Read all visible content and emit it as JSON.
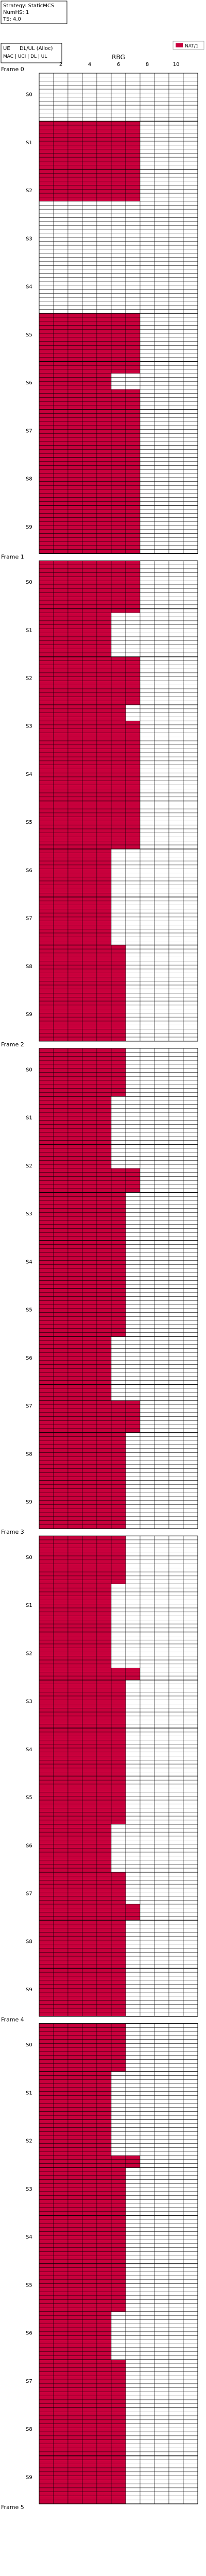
{
  "header": {
    "info_lines": [
      "Strategy: StaticMCS",
      "NumHS: 1",
      "TS: 4.0"
    ],
    "legend_lines": [
      "UE",
      "DL/UL (Alloc)",
      "MAC | UCI | DL | UL"
    ],
    "legend_item": "NAT/1"
  },
  "colors": {
    "allocated": "#c8003c",
    "grid": "#000000",
    "free": "#ffffff",
    "background": "#ffffff"
  },
  "chart_data": {
    "type": "heatmap",
    "xlabel": "RBG",
    "x_ticks": [
      2,
      4,
      6,
      8,
      10
    ],
    "x_range": [
      0,
      11
    ],
    "rows_per_slot": 12,
    "grid": true,
    "legend_position": "top-right",
    "series": [
      {
        "name": "NAT/1",
        "color": "#c8003c"
      }
    ],
    "frames": [
      {
        "label": "Frame 0",
        "slots": [
          {
            "label": "S0",
            "allocated_rbgs": [
              0,
              0,
              0,
              0,
              0,
              0,
              0,
              0,
              0,
              0,
              0,
              0
            ]
          },
          {
            "label": "S1",
            "allocated_rbgs": [
              7,
              7,
              7,
              7,
              7,
              7,
              7,
              7,
              7,
              7,
              7,
              7
            ]
          },
          {
            "label": "S2",
            "allocated_rbgs": [
              7,
              7,
              7,
              7,
              7,
              7,
              7,
              7,
              0,
              0,
              0,
              0
            ]
          },
          {
            "label": "S3",
            "allocated_rbgs": [
              0,
              0,
              0,
              0,
              0,
              0,
              0,
              0,
              0,
              0,
              0,
              0
            ]
          },
          {
            "label": "S4",
            "allocated_rbgs": [
              0,
              0,
              0,
              0,
              0,
              0,
              0,
              0,
              0,
              0,
              0,
              0
            ]
          },
          {
            "label": "S5",
            "allocated_rbgs": [
              7,
              7,
              7,
              7,
              7,
              7,
              7,
              7,
              7,
              7,
              7,
              7
            ]
          },
          {
            "label": "S6",
            "allocated_rbgs": [
              7,
              7,
              7,
              5,
              5,
              5,
              5,
              7,
              7,
              7,
              7,
              7
            ]
          },
          {
            "label": "S7",
            "allocated_rbgs": [
              7,
              7,
              7,
              7,
              7,
              7,
              7,
              7,
              7,
              7,
              7,
              7
            ]
          },
          {
            "label": "S8",
            "allocated_rbgs": [
              7,
              7,
              7,
              7,
              7,
              7,
              7,
              7,
              7,
              7,
              7,
              7
            ]
          },
          {
            "label": "S9",
            "allocated_rbgs": [
              7,
              7,
              7,
              7,
              7,
              7,
              7,
              7,
              7,
              7,
              7,
              7
            ]
          }
        ]
      },
      {
        "label": "Frame 1",
        "slots": [
          {
            "label": "S0",
            "allocated_rbgs": [
              7,
              7,
              7,
              7,
              7,
              7,
              7,
              7,
              7,
              7,
              7,
              7
            ]
          },
          {
            "label": "S1",
            "allocated_rbgs": [
              7,
              5,
              5,
              5,
              5,
              5,
              5,
              5,
              5,
              5,
              5,
              5
            ]
          },
          {
            "label": "S2",
            "allocated_rbgs": [
              7,
              7,
              7,
              7,
              7,
              7,
              7,
              7,
              7,
              7,
              7,
              7
            ]
          },
          {
            "label": "S3",
            "allocated_rbgs": [
              6,
              6,
              6,
              6,
              7,
              7,
              7,
              7,
              7,
              7,
              7,
              7
            ]
          },
          {
            "label": "S4",
            "allocated_rbgs": [
              7,
              7,
              7,
              7,
              7,
              7,
              7,
              7,
              7,
              7,
              7,
              7
            ]
          },
          {
            "label": "S5",
            "allocated_rbgs": [
              7,
              7,
              7,
              7,
              7,
              7,
              7,
              7,
              7,
              7,
              7,
              7
            ]
          },
          {
            "label": "S6",
            "allocated_rbgs": [
              5,
              5,
              5,
              5,
              5,
              5,
              5,
              5,
              5,
              5,
              5,
              5
            ]
          },
          {
            "label": "S7",
            "allocated_rbgs": [
              5,
              5,
              5,
              5,
              5,
              5,
              5,
              5,
              5,
              5,
              5,
              5
            ]
          },
          {
            "label": "S8",
            "allocated_rbgs": [
              6,
              6,
              6,
              6,
              6,
              6,
              6,
              6,
              6,
              6,
              6,
              6
            ]
          },
          {
            "label": "S9",
            "allocated_rbgs": [
              6,
              6,
              6,
              6,
              6,
              6,
              6,
              6,
              6,
              6,
              6,
              6
            ]
          }
        ]
      },
      {
        "label": "Frame 2",
        "slots": [
          {
            "label": "S0",
            "allocated_rbgs": [
              6,
              6,
              6,
              6,
              6,
              6,
              6,
              6,
              6,
              6,
              6,
              6
            ]
          },
          {
            "label": "S1",
            "allocated_rbgs": [
              5,
              5,
              5,
              5,
              5,
              5,
              5,
              5,
              5,
              5,
              5,
              5
            ]
          },
          {
            "label": "S2",
            "allocated_rbgs": [
              5,
              5,
              5,
              5,
              5,
              5,
              7,
              7,
              7,
              7,
              7,
              7
            ]
          },
          {
            "label": "S3",
            "allocated_rbgs": [
              6,
              6,
              6,
              6,
              6,
              6,
              6,
              6,
              6,
              6,
              6,
              6
            ]
          },
          {
            "label": "S4",
            "allocated_rbgs": [
              6,
              6,
              6,
              6,
              6,
              6,
              6,
              6,
              6,
              6,
              6,
              6
            ]
          },
          {
            "label": "S5",
            "allocated_rbgs": [
              6,
              6,
              6,
              6,
              6,
              6,
              6,
              6,
              6,
              6,
              6,
              6
            ]
          },
          {
            "label": "S6",
            "allocated_rbgs": [
              5,
              5,
              5,
              5,
              5,
              5,
              5,
              5,
              5,
              5,
              5,
              5
            ]
          },
          {
            "label": "S7",
            "allocated_rbgs": [
              5,
              5,
              5,
              5,
              7,
              7,
              7,
              7,
              7,
              7,
              7,
              7
            ]
          },
          {
            "label": "S8",
            "allocated_rbgs": [
              6,
              6,
              6,
              6,
              6,
              6,
              6,
              6,
              6,
              6,
              6,
              6
            ]
          },
          {
            "label": "S9",
            "allocated_rbgs": [
              6,
              6,
              6,
              6,
              6,
              6,
              6,
              6,
              6,
              6,
              6,
              6
            ]
          }
        ]
      },
      {
        "label": "Frame 3",
        "slots": [
          {
            "label": "S0",
            "allocated_rbgs": [
              6,
              6,
              6,
              6,
              6,
              6,
              6,
              6,
              6,
              6,
              6,
              6
            ]
          },
          {
            "label": "S1",
            "allocated_rbgs": [
              5,
              5,
              5,
              5,
              5,
              5,
              5,
              5,
              5,
              5,
              5,
              5
            ]
          },
          {
            "label": "S2",
            "allocated_rbgs": [
              5,
              5,
              5,
              5,
              5,
              5,
              5,
              5,
              5,
              7,
              7,
              7
            ]
          },
          {
            "label": "S3",
            "allocated_rbgs": [
              6,
              6,
              6,
              6,
              6,
              6,
              6,
              6,
              6,
              6,
              6,
              6
            ]
          },
          {
            "label": "S4",
            "allocated_rbgs": [
              6,
              6,
              6,
              6,
              6,
              6,
              6,
              6,
              6,
              6,
              6,
              6
            ]
          },
          {
            "label": "S5",
            "allocated_rbgs": [
              6,
              6,
              6,
              6,
              6,
              6,
              6,
              6,
              6,
              6,
              6,
              6
            ]
          },
          {
            "label": "S6",
            "allocated_rbgs": [
              5,
              5,
              5,
              5,
              5,
              5,
              5,
              5,
              5,
              5,
              5,
              5
            ]
          },
          {
            "label": "S7",
            "allocated_rbgs": [
              6,
              6,
              6,
              6,
              6,
              6,
              6,
              6,
              7,
              7,
              7,
              7
            ]
          },
          {
            "label": "S8",
            "allocated_rbgs": [
              6,
              6,
              6,
              6,
              6,
              6,
              6,
              6,
              6,
              6,
              6,
              6
            ]
          },
          {
            "label": "S9",
            "allocated_rbgs": [
              6,
              6,
              6,
              6,
              6,
              6,
              6,
              6,
              6,
              6,
              6,
              6
            ]
          }
        ]
      },
      {
        "label": "Frame 4",
        "slots": [
          {
            "label": "S0",
            "allocated_rbgs": [
              6,
              6,
              6,
              6,
              6,
              6,
              6,
              6,
              6,
              6,
              6,
              6
            ]
          },
          {
            "label": "S1",
            "allocated_rbgs": [
              5,
              5,
              5,
              5,
              5,
              5,
              5,
              5,
              5,
              5,
              5,
              5
            ]
          },
          {
            "label": "S2",
            "allocated_rbgs": [
              5,
              5,
              5,
              5,
              5,
              5,
              5,
              5,
              5,
              7,
              7,
              7
            ]
          },
          {
            "label": "S3",
            "allocated_rbgs": [
              6,
              6,
              6,
              6,
              6,
              6,
              6,
              6,
              6,
              6,
              6,
              6
            ]
          },
          {
            "label": "S4",
            "allocated_rbgs": [
              6,
              6,
              6,
              6,
              6,
              6,
              6,
              6,
              6,
              6,
              6,
              6
            ]
          },
          {
            "label": "S5",
            "allocated_rbgs": [
              6,
              6,
              6,
              6,
              6,
              6,
              6,
              6,
              6,
              6,
              6,
              6
            ]
          },
          {
            "label": "S6",
            "allocated_rbgs": [
              5,
              5,
              5,
              5,
              5,
              5,
              5,
              5,
              5,
              5,
              5,
              5
            ]
          },
          {
            "label": "S7",
            "allocated_rbgs": [
              6,
              6,
              6,
              6,
              6,
              6,
              6,
              6,
              6,
              6,
              6,
              6
            ]
          },
          {
            "label": "S8",
            "allocated_rbgs": [
              6,
              6,
              6,
              6,
              6,
              6,
              6,
              6,
              6,
              6,
              6,
              6
            ]
          },
          {
            "label": "S9",
            "allocated_rbgs": [
              6,
              6,
              6,
              6,
              6,
              6,
              6,
              6,
              6,
              6,
              6,
              6
            ]
          }
        ]
      },
      {
        "label": "Frame 5",
        "slots": []
      }
    ]
  }
}
